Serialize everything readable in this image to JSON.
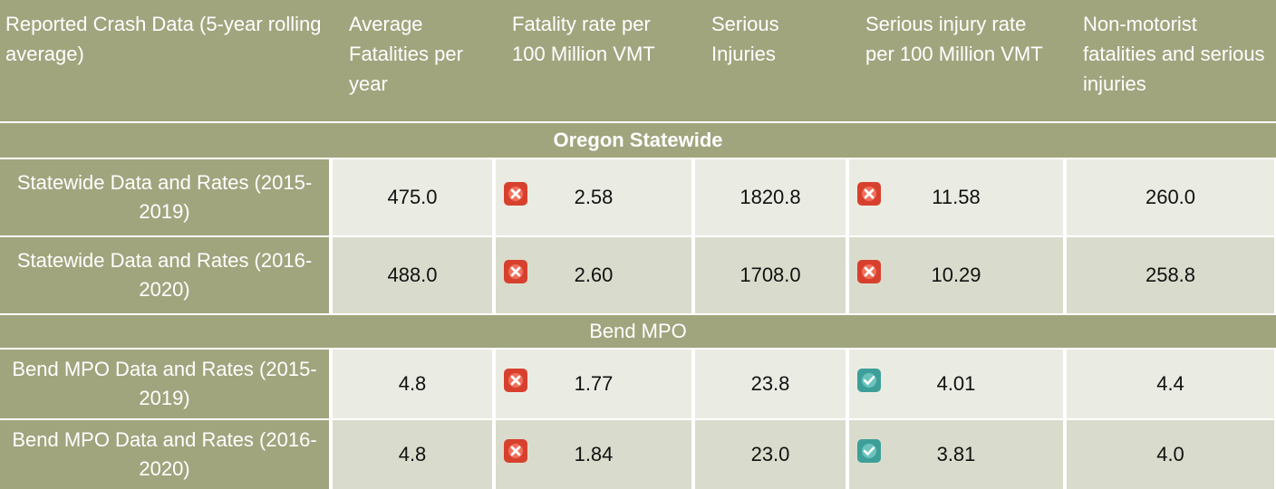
{
  "table": {
    "headers": [
      "Reported Crash Data (5-year rolling average)",
      "Average Fatalities per year",
      "Fatality rate per 100 Million VMT",
      "Serious Injuries",
      "Serious injury rate per 100 Million VMT",
      "Non-motorist fatalities and serious injuries"
    ],
    "sections": [
      {
        "title": "Oregon Statewide",
        "rows": [
          {
            "label": "Statewide Data and Rates (2015-2019)",
            "cells": [
              "475.0",
              "2.58",
              "1820.8",
              "11.58",
              "260.0"
            ]
          },
          {
            "label": "Statewide Data and Rates (2016-2020)",
            "cells": [
              "488.0",
              "2.60",
              "1708.0",
              "10.29",
              "258.8"
            ]
          }
        ]
      },
      {
        "title": "Bend MPO",
        "rows": [
          {
            "label": "Bend MPO Data and Rates (2015-2019)",
            "cells": [
              "4.8",
              "1.77",
              "23.8",
              "4.01",
              "4.4"
            ]
          },
          {
            "label": "Bend MPO Data and Rates (2016-2020)",
            "cells": [
              "4.8",
              "1.84",
              "23.0",
              "3.81",
              "4.0"
            ]
          }
        ]
      }
    ]
  }
}
